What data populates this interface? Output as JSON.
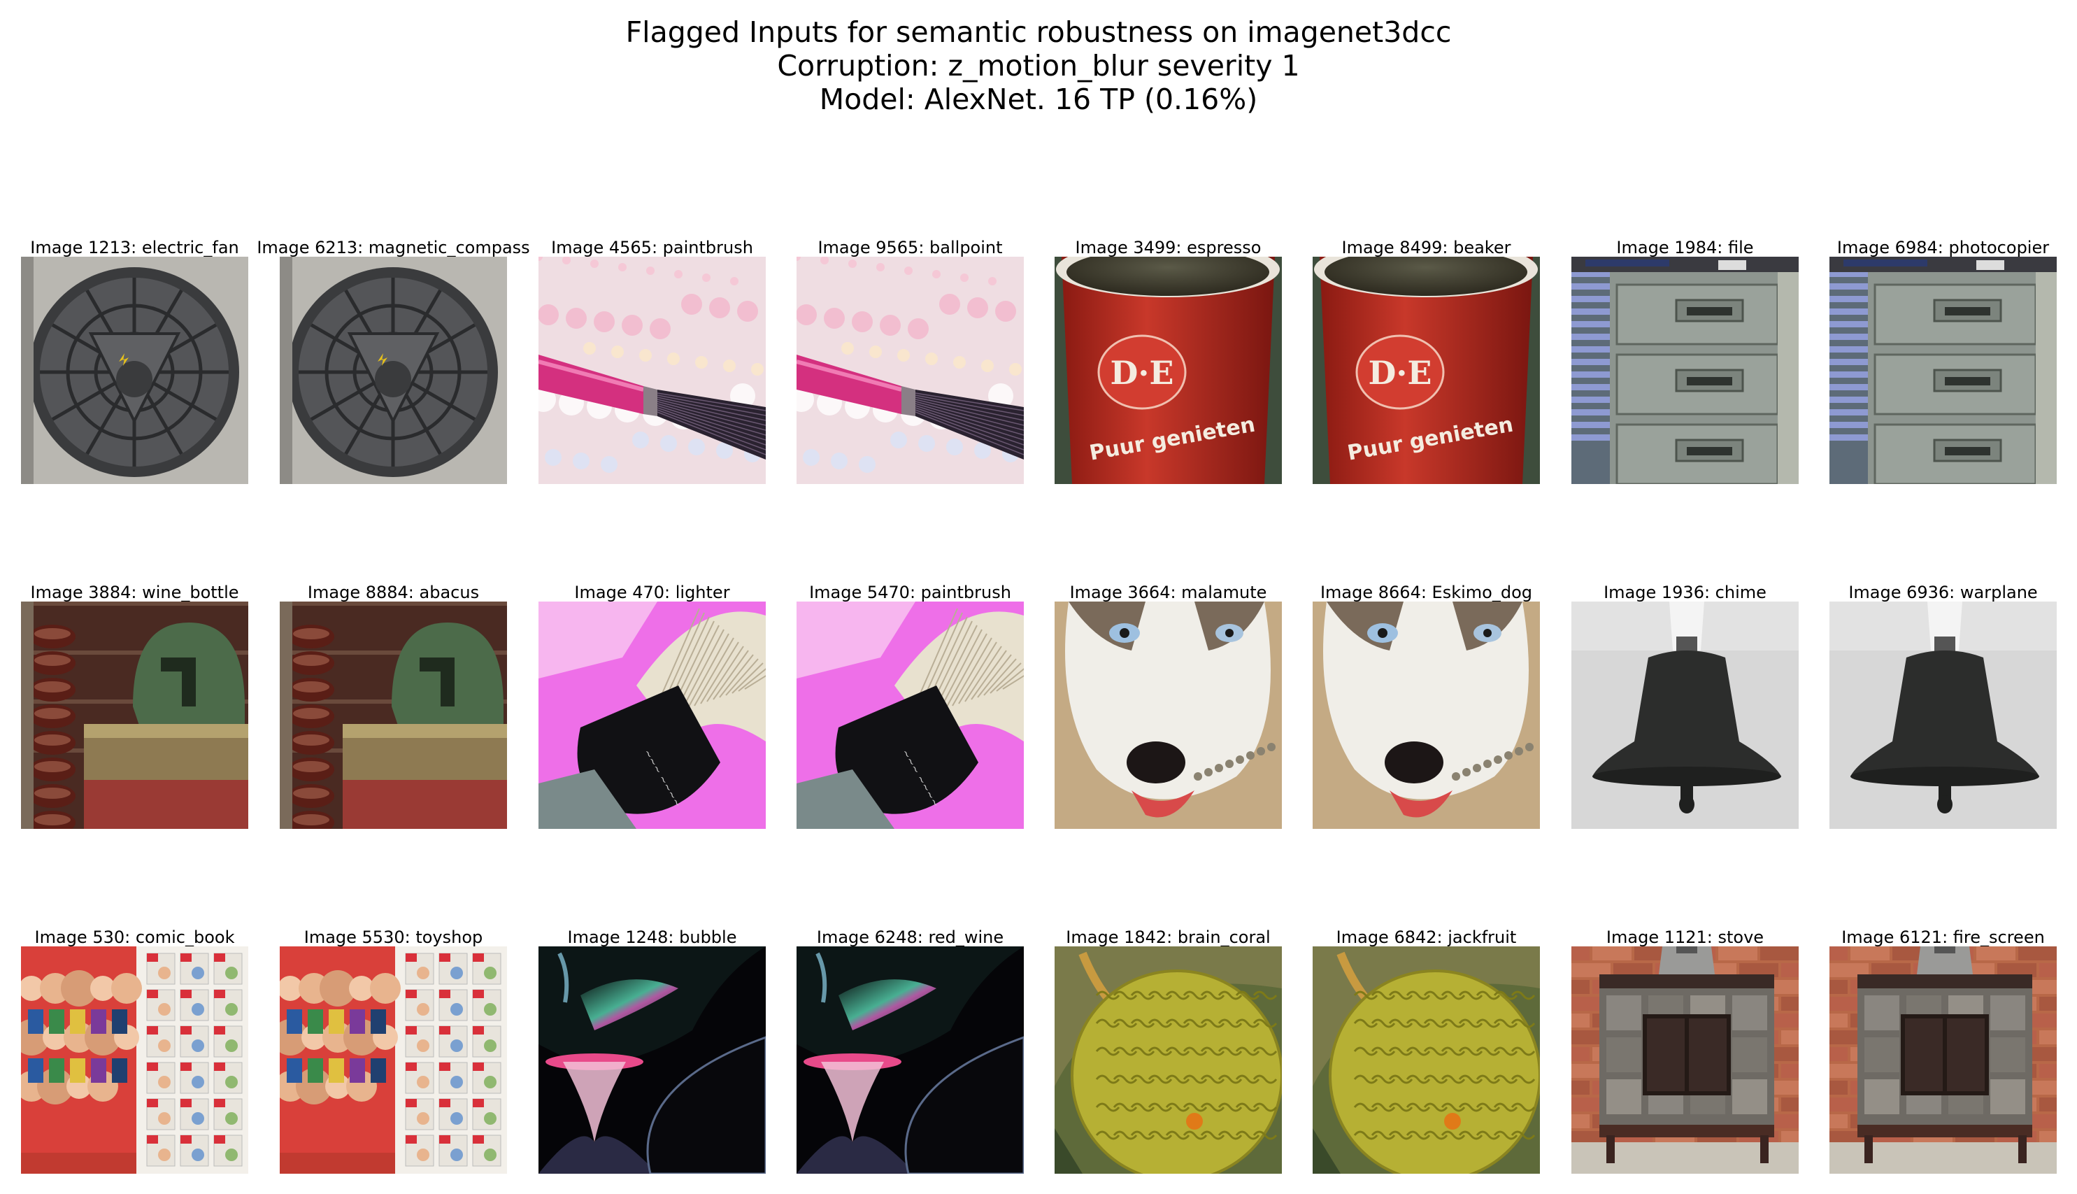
{
  "figure": {
    "title_lines": [
      "Flagged Inputs for semantic robustness on imagenet3dcc",
      "Corruption: z_motion_blur severity 1",
      "Model: AlexNet. 16 TP (0.16%)"
    ]
  },
  "images": [
    {
      "label": "Image 1213: electric_fan",
      "scene": "fan"
    },
    {
      "label": "Image 6213: magnetic_compass",
      "scene": "fan"
    },
    {
      "label": "Image 4565: paintbrush",
      "scene": "pinkbrush"
    },
    {
      "label": "Image 9565: ballpoint",
      "scene": "pinkbrush"
    },
    {
      "label": "Image 3499: espresso",
      "scene": "cup"
    },
    {
      "label": "Image 8499: beaker",
      "scene": "cup"
    },
    {
      "label": "Image 1984: file",
      "scene": "cabinet"
    },
    {
      "label": "Image 6984: photocopier",
      "scene": "cabinet"
    },
    {
      "label": "Image 3884: wine_bottle",
      "scene": "helmet"
    },
    {
      "label": "Image 8884: abacus",
      "scene": "helmet"
    },
    {
      "label": "Image 470: lighter",
      "scene": "makeupbrush"
    },
    {
      "label": "Image 5470: paintbrush",
      "scene": "makeupbrush"
    },
    {
      "label": "Image 3664: malamute",
      "scene": "dog"
    },
    {
      "label": "Image 8664: Eskimo_dog",
      "scene": "dog"
    },
    {
      "label": "Image 1936: chime",
      "scene": "bell"
    },
    {
      "label": "Image 6936: warplane",
      "scene": "bell"
    },
    {
      "label": "Image 530: comic_book",
      "scene": "comic"
    },
    {
      "label": "Image 5530: toyshop",
      "scene": "comic"
    },
    {
      "label": "Image 1248: bubble",
      "scene": "glass"
    },
    {
      "label": "Image 6248: red_wine",
      "scene": "glass"
    },
    {
      "label": "Image 1842: brain_coral",
      "scene": "coral"
    },
    {
      "label": "Image 6842: jackfruit",
      "scene": "coral"
    },
    {
      "label": "Image 1121: stove",
      "scene": "stove"
    },
    {
      "label": "Image 6121: fire_screen",
      "scene": "stove"
    }
  ],
  "cup_print": {
    "logo": "D·E",
    "slogan": "Puur genieten"
  }
}
